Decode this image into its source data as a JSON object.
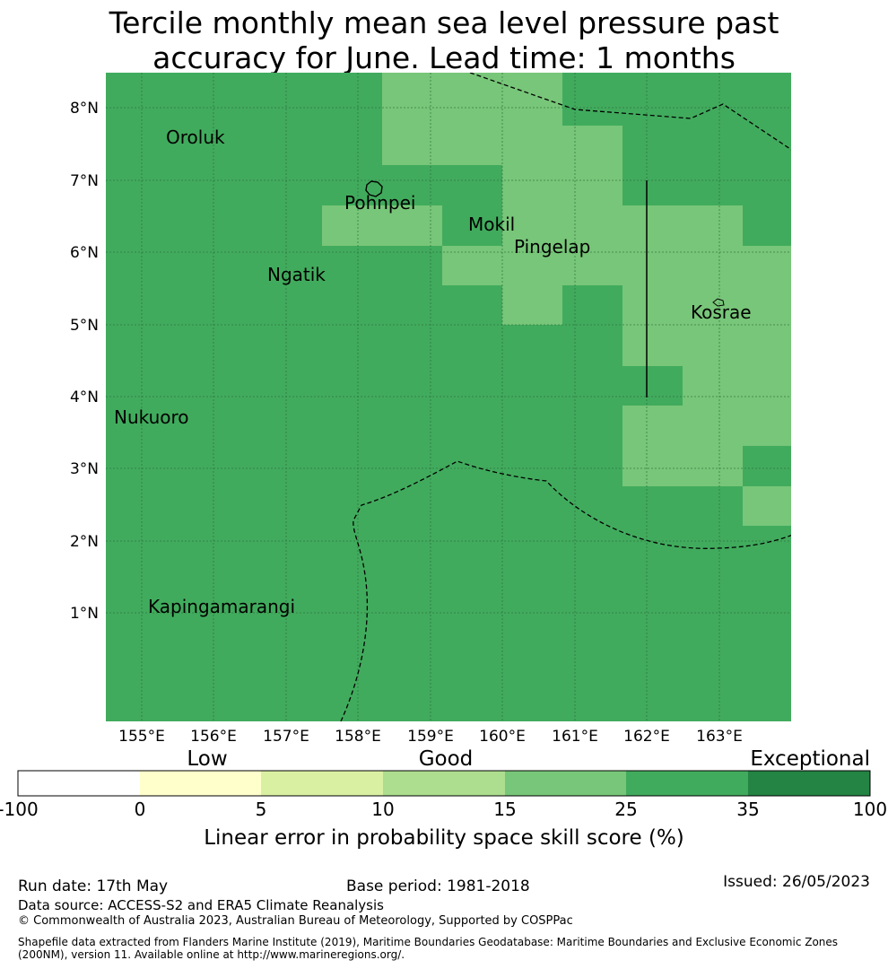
{
  "title": {
    "line1": "Tercile monthly mean sea level pressure past",
    "line2": "accuracy for June. Lead time: 1 months"
  },
  "map": {
    "lat_labels": [
      "8°N",
      "7°N",
      "6°N",
      "5°N",
      "4°N",
      "3°N",
      "2°N",
      "1°N"
    ],
    "lon_labels": [
      "155°E",
      "156°E",
      "157°E",
      "158°E",
      "159°E",
      "160°E",
      "161°E",
      "162°E",
      "163°E"
    ],
    "places": [
      "Oroluk",
      "Pohnpei",
      "Mokil",
      "Pingelap",
      "Ngatik",
      "Kosrae",
      "Nukuoro",
      "Kapingamarangi"
    ],
    "colors": {
      "good": "#78c679",
      "very_good": "#41ab5d"
    }
  },
  "colorbar": {
    "category_labels": [
      "Low",
      "Good",
      "Exceptional"
    ],
    "ticks": [
      "-100",
      "0",
      "5",
      "10",
      "15",
      "25",
      "35",
      "100"
    ],
    "colors": [
      "#ffffff",
      "#ffffcc",
      "#d9f0a3",
      "#addd8e",
      "#78c679",
      "#41ab5d",
      "#238443"
    ],
    "label": "Linear error in probability space skill score (%)"
  },
  "footer": {
    "run_date": "Run date: 17th May",
    "base_period": "Base period: 1981-2018",
    "issued": "Issued: 26/05/2023",
    "data_source": "Data source: ACCESS-S2 and ERA5 Climate Reanalysis",
    "copyright": "© Commonwealth of Australia 2023, Australian Bureau of Meteorology, Supported by COSPPac",
    "shapefile_line1": "Shapefile data extracted from Flanders Marine Institute (2019), Maritime Boundaries Geodatabase: Maritime Boundaries and Exclusive Economic Zones",
    "shapefile_line2": "(200NM), version 11. Available online at http://www.marineregions.org/."
  }
}
